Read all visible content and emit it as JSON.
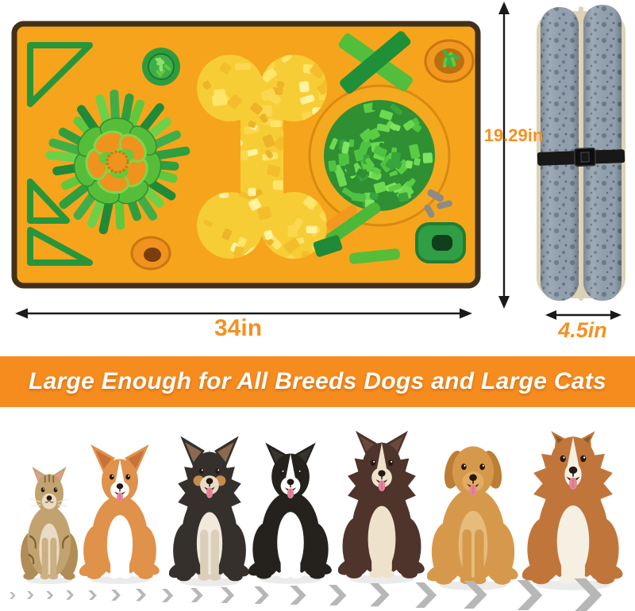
{
  "dimensions": {
    "flat_mat_width": "34in",
    "rolled_mat_height": "19.29in",
    "rolled_mat_width": "4.5in"
  },
  "banner": {
    "text": "Large Enough for All Breeds Dogs and Large Cats"
  },
  "size_comparison": {
    "pets": [
      {
        "id": "cat",
        "label": "tabby cat"
      },
      {
        "id": "corgi",
        "label": "welsh corgi"
      },
      {
        "id": "chihuahua",
        "label": "long-haired chihuahua"
      },
      {
        "id": "border-collie",
        "label": "black and white border collie"
      },
      {
        "id": "border-collie-brown",
        "label": "brown and white border collie"
      },
      {
        "id": "golden-retriever",
        "label": "golden retriever"
      },
      {
        "id": "rough-collie",
        "label": "rough collie"
      }
    ]
  },
  "colors": {
    "banner_background": "#F78C1E",
    "dimension_text": "#F59120",
    "arrow_black": "#1A1A1A",
    "mat_base": "#F6A41C",
    "mat_trim": "#42301A",
    "mat_green_dark": "#2F9E3F",
    "mat_green_light": "#5FC83C",
    "bone_yellow": "#F7CD35",
    "rolled_mat_gray": "#93A1AF",
    "rolled_mat_trim": "#DCD2B6",
    "strap_black": "#181818",
    "chevron_gray": "#B7B7B7"
  }
}
